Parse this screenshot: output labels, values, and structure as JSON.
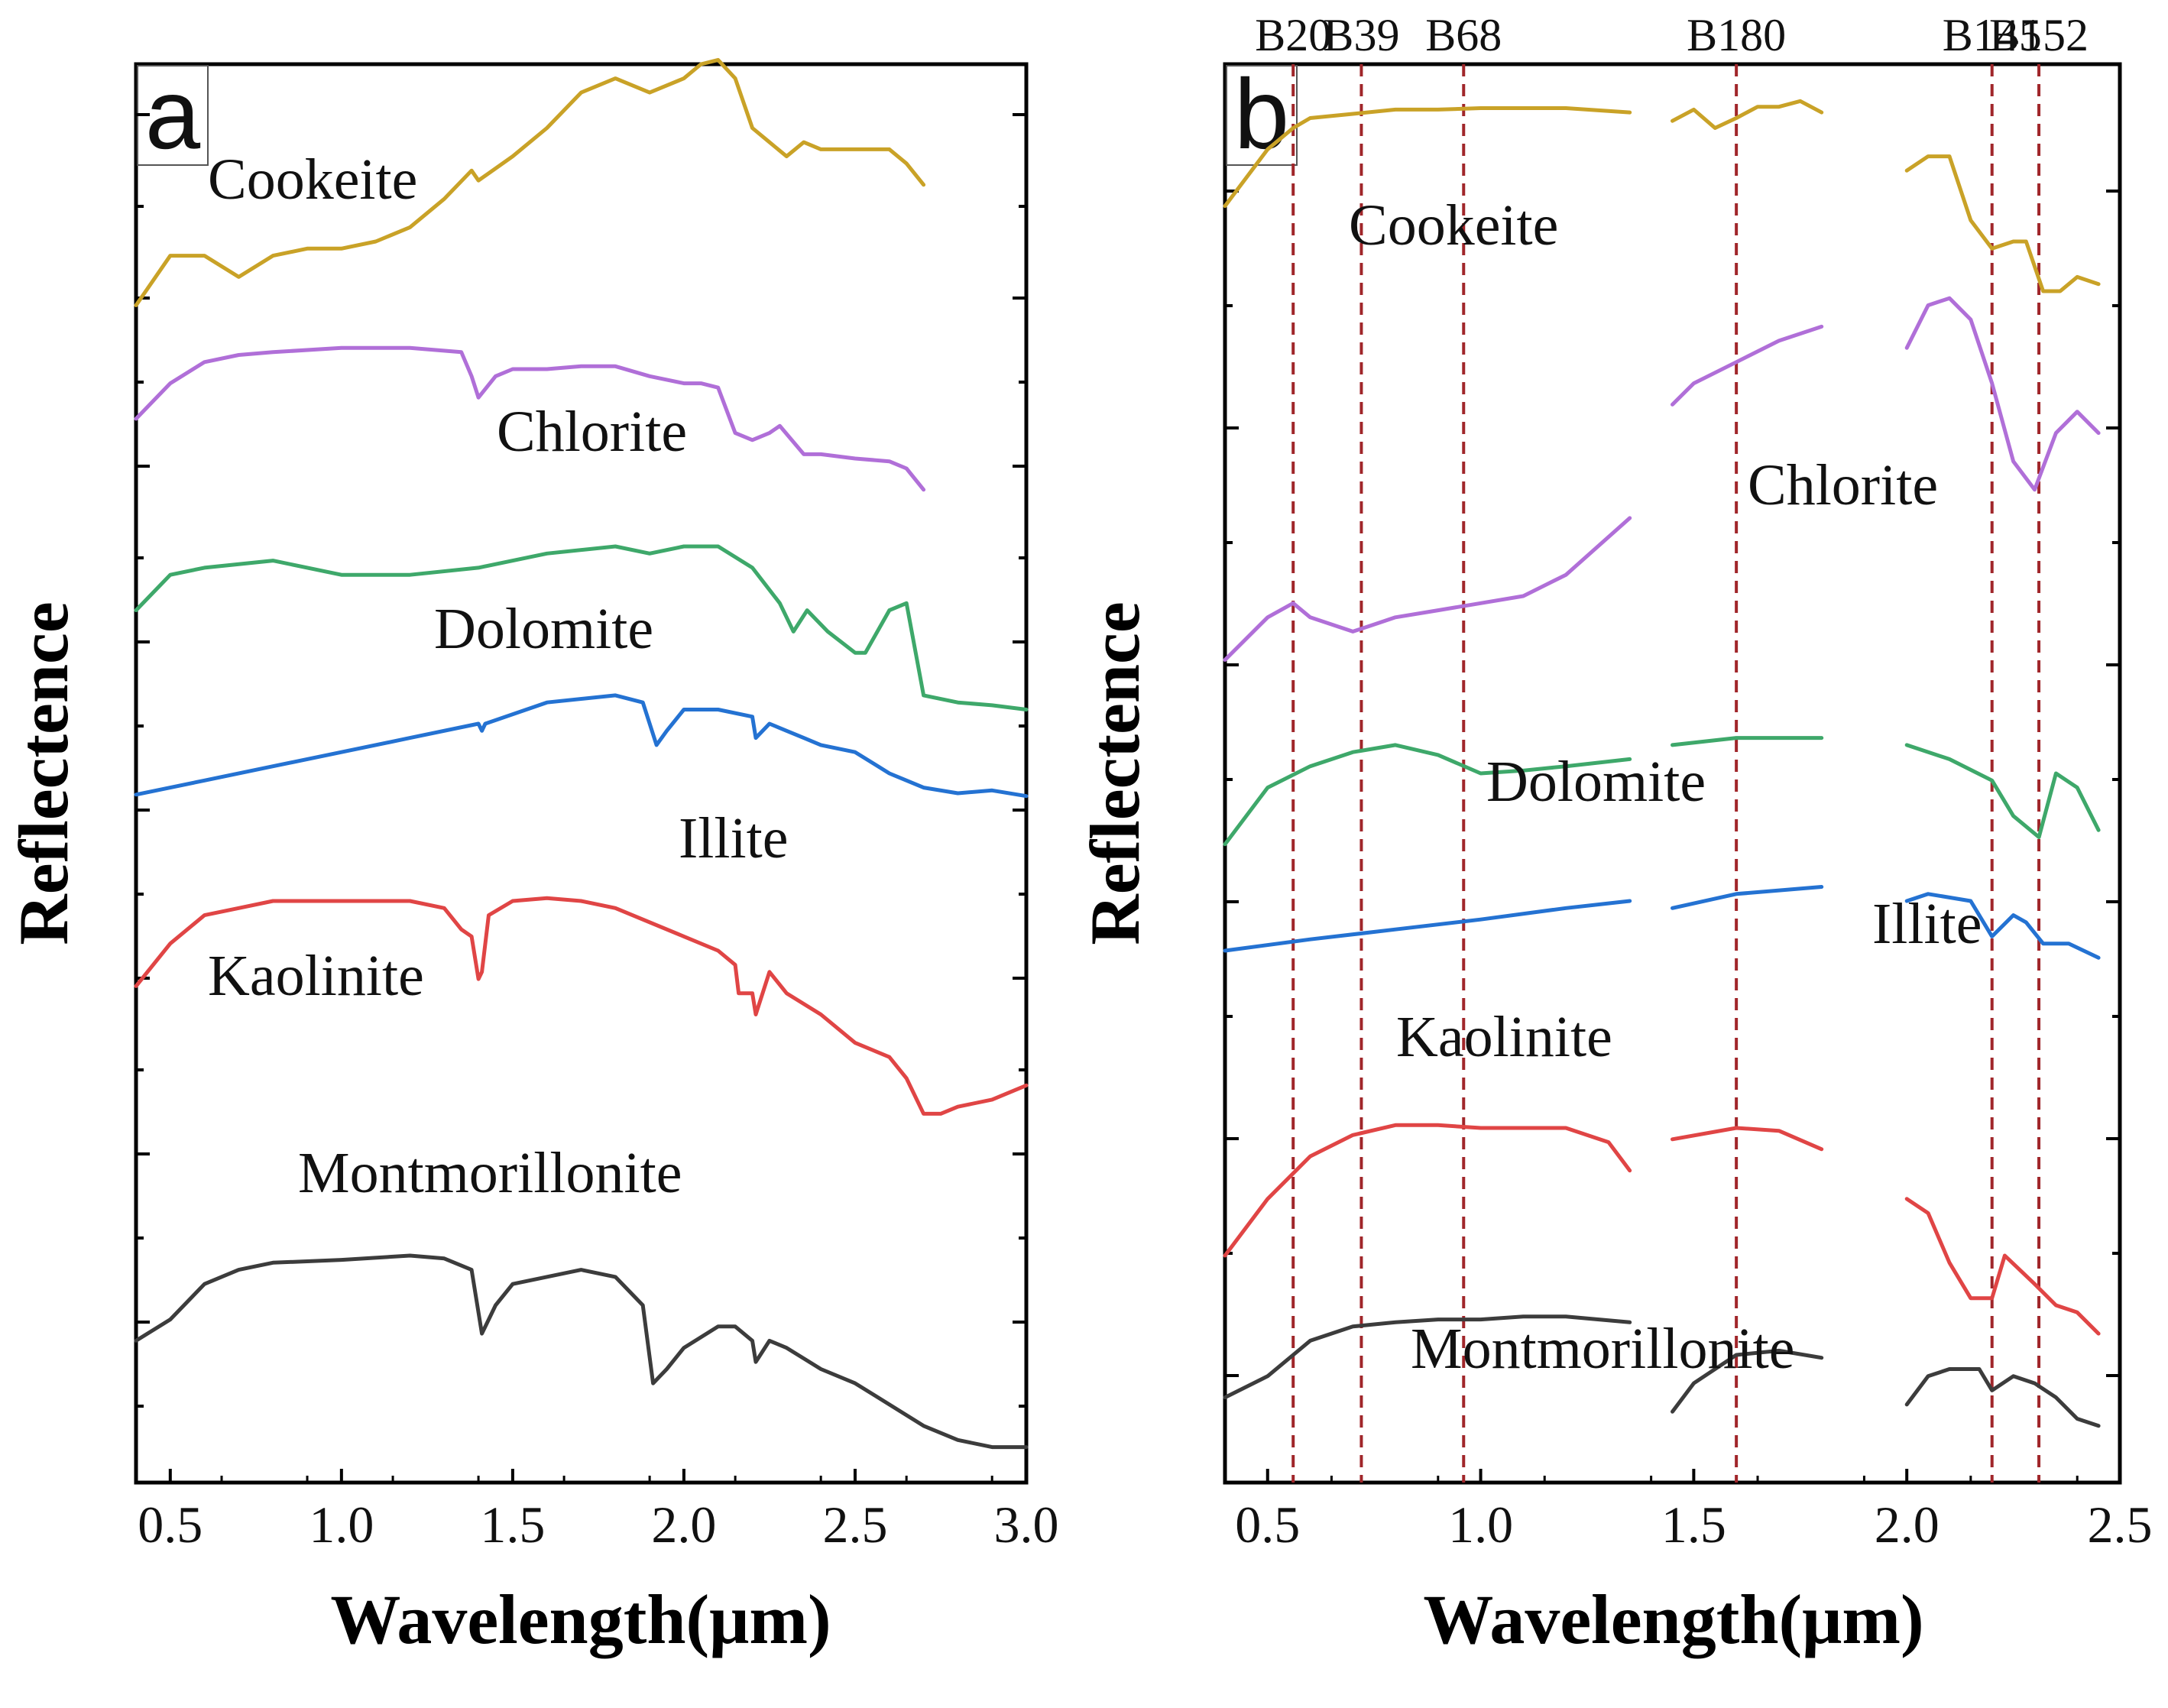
{
  "chart_data": [
    {
      "type": "line",
      "panel_label": "a",
      "xlabel": "Wavelength(μm)",
      "ylabel": "Reflectence",
      "xlim": [
        0.4,
        3.0
      ],
      "ylim": [
        0,
        1
      ],
      "y_ticks_labeled": false,
      "x_ticks": [
        0.5,
        1.0,
        1.5,
        2.0,
        2.5,
        3.0
      ],
      "x_tick_labels": [
        "0.5",
        "1.0",
        "1.5",
        "2.0",
        "2.5",
        "3.0"
      ],
      "series": [
        {
          "name": "Cookeite",
          "color": "#C9A227",
          "x": [
            0.4,
            0.5,
            0.6,
            0.7,
            0.8,
            0.9,
            1.0,
            1.1,
            1.2,
            1.3,
            1.38,
            1.4,
            1.5,
            1.6,
            1.7,
            1.8,
            1.9,
            2.0,
            2.05,
            2.1,
            2.15,
            2.2,
            2.25,
            2.3,
            2.35,
            2.4,
            2.45,
            2.5,
            2.6,
            2.65,
            2.7
          ],
          "y": [
            0.83,
            0.865,
            0.865,
            0.85,
            0.865,
            0.87,
            0.87,
            0.875,
            0.885,
            0.905,
            0.925,
            0.918,
            0.935,
            0.955,
            0.98,
            0.99,
            0.98,
            0.99,
            1.0,
            1.003,
            0.99,
            0.955,
            0.945,
            0.935,
            0.945,
            0.94,
            0.94,
            0.94,
            0.94,
            0.93,
            0.915
          ]
        },
        {
          "name": "Chlorite",
          "color": "#B06FD8",
          "x": [
            0.4,
            0.5,
            0.6,
            0.7,
            0.8,
            1.0,
            1.2,
            1.35,
            1.38,
            1.4,
            1.45,
            1.5,
            1.6,
            1.7,
            1.8,
            1.9,
            2.0,
            2.05,
            2.1,
            2.15,
            2.2,
            2.25,
            2.28,
            2.35,
            2.4,
            2.5,
            2.6,
            2.65,
            2.7
          ],
          "y": [
            0.75,
            0.775,
            0.79,
            0.795,
            0.797,
            0.8,
            0.8,
            0.797,
            0.78,
            0.765,
            0.78,
            0.785,
            0.785,
            0.787,
            0.787,
            0.78,
            0.775,
            0.775,
            0.772,
            0.74,
            0.735,
            0.74,
            0.745,
            0.725,
            0.725,
            0.722,
            0.72,
            0.715,
            0.7
          ]
        },
        {
          "name": "Dolomite",
          "color": "#3EA86A",
          "x": [
            0.4,
            0.5,
            0.6,
            0.8,
            1.0,
            1.2,
            1.4,
            1.6,
            1.8,
            1.9,
            2.0,
            2.1,
            2.2,
            2.28,
            2.32,
            2.36,
            2.42,
            2.5,
            2.53,
            2.6,
            2.65,
            2.7,
            2.8,
            2.9,
            3.0
          ],
          "y": [
            0.615,
            0.64,
            0.645,
            0.65,
            0.64,
            0.64,
            0.645,
            0.655,
            0.66,
            0.655,
            0.66,
            0.66,
            0.645,
            0.62,
            0.6,
            0.615,
            0.6,
            0.585,
            0.585,
            0.615,
            0.62,
            0.555,
            0.55,
            0.548,
            0.545
          ]
        },
        {
          "name": "Illite",
          "color": "#2472D2",
          "x": [
            0.4,
            0.6,
            0.8,
            1.0,
            1.2,
            1.4,
            1.41,
            1.42,
            1.6,
            1.8,
            1.88,
            1.92,
            1.95,
            2.0,
            2.1,
            2.2,
            2.21,
            2.25,
            2.3,
            2.35,
            2.4,
            2.5,
            2.6,
            2.7,
            2.8,
            2.9,
            3.0
          ],
          "y": [
            0.485,
            0.495,
            0.505,
            0.515,
            0.525,
            0.535,
            0.53,
            0.535,
            0.55,
            0.555,
            0.55,
            0.52,
            0.53,
            0.545,
            0.545,
            0.54,
            0.525,
            0.535,
            0.53,
            0.525,
            0.52,
            0.515,
            0.5,
            0.49,
            0.486,
            0.488,
            0.484
          ]
        },
        {
          "name": "Kaolinite",
          "color": "#E04545",
          "x": [
            0.4,
            0.5,
            0.6,
            0.7,
            0.8,
            1.0,
            1.2,
            1.3,
            1.35,
            1.38,
            1.4,
            1.41,
            1.43,
            1.5,
            1.6,
            1.7,
            1.8,
            2.0,
            2.1,
            2.15,
            2.16,
            2.2,
            2.21,
            2.25,
            2.3,
            2.4,
            2.5,
            2.6,
            2.65,
            2.7,
            2.75,
            2.8,
            2.9,
            3.0
          ],
          "y": [
            0.35,
            0.38,
            0.4,
            0.405,
            0.41,
            0.41,
            0.41,
            0.405,
            0.39,
            0.385,
            0.355,
            0.36,
            0.4,
            0.41,
            0.412,
            0.41,
            0.405,
            0.385,
            0.375,
            0.365,
            0.345,
            0.345,
            0.33,
            0.36,
            0.345,
            0.33,
            0.31,
            0.3,
            0.285,
            0.26,
            0.26,
            0.265,
            0.27,
            0.28
          ]
        },
        {
          "name": "Montmorillonite",
          "color": "#3C3C3C",
          "x": [
            0.4,
            0.5,
            0.6,
            0.7,
            0.8,
            1.0,
            1.2,
            1.3,
            1.38,
            1.41,
            1.45,
            1.5,
            1.7,
            1.8,
            1.88,
            1.91,
            1.95,
            2.0,
            2.1,
            2.15,
            2.2,
            2.21,
            2.25,
            2.3,
            2.4,
            2.5,
            2.6,
            2.7,
            2.8,
            2.9,
            3.0
          ],
          "y": [
            0.1,
            0.115,
            0.14,
            0.15,
            0.155,
            0.157,
            0.16,
            0.158,
            0.15,
            0.105,
            0.125,
            0.14,
            0.15,
            0.145,
            0.125,
            0.07,
            0.08,
            0.095,
            0.11,
            0.11,
            0.1,
            0.085,
            0.1,
            0.095,
            0.08,
            0.07,
            0.055,
            0.04,
            0.03,
            0.025,
            0.025
          ]
        }
      ],
      "labels": [
        "Cookeite",
        "Chlorite",
        "Dolomite",
        "Illite",
        "Kaolinite",
        "Montmorillonite"
      ]
    },
    {
      "type": "line",
      "panel_label": "b",
      "xlabel": "Wavelength(μm)",
      "ylabel": "Reflectence",
      "xlim": [
        0.4,
        2.5
      ],
      "ylim": [
        0,
        1
      ],
      "y_ticks_labeled": false,
      "x_ticks": [
        0.5,
        1.0,
        1.5,
        2.0,
        2.5
      ],
      "x_tick_labels": [
        "0.5",
        "1.0",
        "1.5",
        "2.0",
        "2.5"
      ],
      "gaps": [
        [
          1.35,
          1.45
        ],
        [
          1.8,
          2.0
        ]
      ],
      "band_lines": [
        {
          "label": "B20",
          "x": 0.56
        },
        {
          "label": "B39",
          "x": 0.72
        },
        {
          "label": "B68",
          "x": 0.96
        },
        {
          "label": "B180",
          "x": 1.6
        },
        {
          "label": "B145",
          "x": 2.2
        },
        {
          "label": "B152",
          "x": 2.31
        }
      ],
      "series": [
        {
          "name": "Cookeite",
          "color": "#C9A227",
          "segments": [
            {
              "x": [
                0.4,
                0.5,
                0.56,
                0.6,
                0.7,
                0.8,
                0.9,
                1.0,
                1.1,
                1.2,
                1.35
              ],
              "y": [
                0.9,
                0.94,
                0.955,
                0.962,
                0.965,
                0.968,
                0.968,
                0.969,
                0.969,
                0.969,
                0.966
              ]
            },
            {
              "x": [
                1.45,
                1.5,
                1.55,
                1.6,
                1.65,
                1.7,
                1.75,
                1.8
              ],
              "y": [
                0.96,
                0.968,
                0.955,
                0.962,
                0.97,
                0.97,
                0.974,
                0.966
              ]
            },
            {
              "x": [
                2.0,
                2.05,
                2.1,
                2.15,
                2.2,
                2.25,
                2.28,
                2.32,
                2.36,
                2.4,
                2.45
              ],
              "y": [
                0.925,
                0.935,
                0.935,
                0.89,
                0.87,
                0.875,
                0.875,
                0.84,
                0.84,
                0.85,
                0.845
              ]
            }
          ]
        },
        {
          "name": "Chlorite",
          "color": "#B06FD8",
          "segments": [
            {
              "x": [
                0.4,
                0.5,
                0.56,
                0.6,
                0.7,
                0.75,
                0.8,
                0.9,
                1.0,
                1.1,
                1.2,
                1.35
              ],
              "y": [
                0.58,
                0.61,
                0.62,
                0.61,
                0.6,
                0.605,
                0.61,
                0.615,
                0.62,
                0.625,
                0.64,
                0.68
              ]
            },
            {
              "x": [
                1.45,
                1.5,
                1.6,
                1.7,
                1.8
              ],
              "y": [
                0.76,
                0.775,
                0.79,
                0.805,
                0.815
              ]
            },
            {
              "x": [
                2.0,
                2.05,
                2.1,
                2.15,
                2.2,
                2.25,
                2.3,
                2.35,
                2.4,
                2.45
              ],
              "y": [
                0.8,
                0.83,
                0.835,
                0.82,
                0.775,
                0.72,
                0.7,
                0.74,
                0.755,
                0.74
              ]
            }
          ]
        },
        {
          "name": "Dolomite",
          "color": "#3EA86A",
          "segments": [
            {
              "x": [
                0.4,
                0.5,
                0.6,
                0.7,
                0.8,
                0.9,
                1.0,
                1.1,
                1.2,
                1.35
              ],
              "y": [
                0.45,
                0.49,
                0.505,
                0.515,
                0.52,
                0.513,
                0.5,
                0.502,
                0.505,
                0.51
              ]
            },
            {
              "x": [
                1.45,
                1.6,
                1.8
              ],
              "y": [
                0.52,
                0.525,
                0.525
              ]
            },
            {
              "x": [
                2.0,
                2.1,
                2.2,
                2.25,
                2.31,
                2.35,
                2.4,
                2.45
              ],
              "y": [
                0.52,
                0.51,
                0.495,
                0.47,
                0.455,
                0.5,
                0.49,
                0.46
              ]
            }
          ]
        },
        {
          "name": "Illite",
          "color": "#2472D2",
          "segments": [
            {
              "x": [
                0.4,
                0.6,
                0.8,
                1.0,
                1.2,
                1.35
              ],
              "y": [
                0.375,
                0.383,
                0.39,
                0.397,
                0.405,
                0.41
              ]
            },
            {
              "x": [
                1.45,
                1.6,
                1.8
              ],
              "y": [
                0.405,
                0.415,
                0.42
              ]
            },
            {
              "x": [
                2.0,
                2.05,
                2.15,
                2.2,
                2.25,
                2.28,
                2.32,
                2.38,
                2.45
              ],
              "y": [
                0.41,
                0.415,
                0.41,
                0.385,
                0.4,
                0.395,
                0.38,
                0.38,
                0.37
              ]
            }
          ]
        },
        {
          "name": "Kaolinite",
          "color": "#E04545",
          "segments": [
            {
              "x": [
                0.4,
                0.5,
                0.6,
                0.7,
                0.8,
                0.9,
                1.0,
                1.1,
                1.2,
                1.3,
                1.35
              ],
              "y": [
                0.16,
                0.2,
                0.23,
                0.245,
                0.252,
                0.252,
                0.25,
                0.25,
                0.25,
                0.24,
                0.22
              ]
            },
            {
              "x": [
                1.45,
                1.6,
                1.7,
                1.8
              ],
              "y": [
                0.242,
                0.25,
                0.248,
                0.235
              ]
            },
            {
              "x": [
                2.0,
                2.05,
                2.1,
                2.15,
                2.17,
                2.2,
                2.23,
                2.3,
                2.35,
                2.4,
                2.45
              ],
              "y": [
                0.2,
                0.19,
                0.155,
                0.13,
                0.13,
                0.13,
                0.16,
                0.14,
                0.125,
                0.12,
                0.105
              ]
            }
          ]
        },
        {
          "name": "Montmorillonite",
          "color": "#3C3C3C",
          "segments": [
            {
              "x": [
                0.4,
                0.5,
                0.56,
                0.6,
                0.7,
                0.8,
                0.9,
                1.0,
                1.1,
                1.2,
                1.35
              ],
              "y": [
                0.06,
                0.075,
                0.09,
                0.1,
                0.11,
                0.113,
                0.115,
                0.115,
                0.117,
                0.117,
                0.113
              ]
            },
            {
              "x": [
                1.45,
                1.5,
                1.6,
                1.7,
                1.8
              ],
              "y": [
                0.05,
                0.07,
                0.09,
                0.093,
                0.088
              ]
            },
            {
              "x": [
                2.0,
                2.05,
                2.1,
                2.17,
                2.2,
                2.25,
                2.3,
                2.35,
                2.4,
                2.45
              ],
              "y": [
                0.055,
                0.075,
                0.08,
                0.08,
                0.065,
                0.075,
                0.07,
                0.06,
                0.045,
                0.04
              ]
            }
          ]
        }
      ],
      "labels": [
        "Cookeite",
        "Chlorite",
        "Dolomite",
        "Illite",
        "Kaolinite",
        "Montmorillonite"
      ]
    }
  ]
}
